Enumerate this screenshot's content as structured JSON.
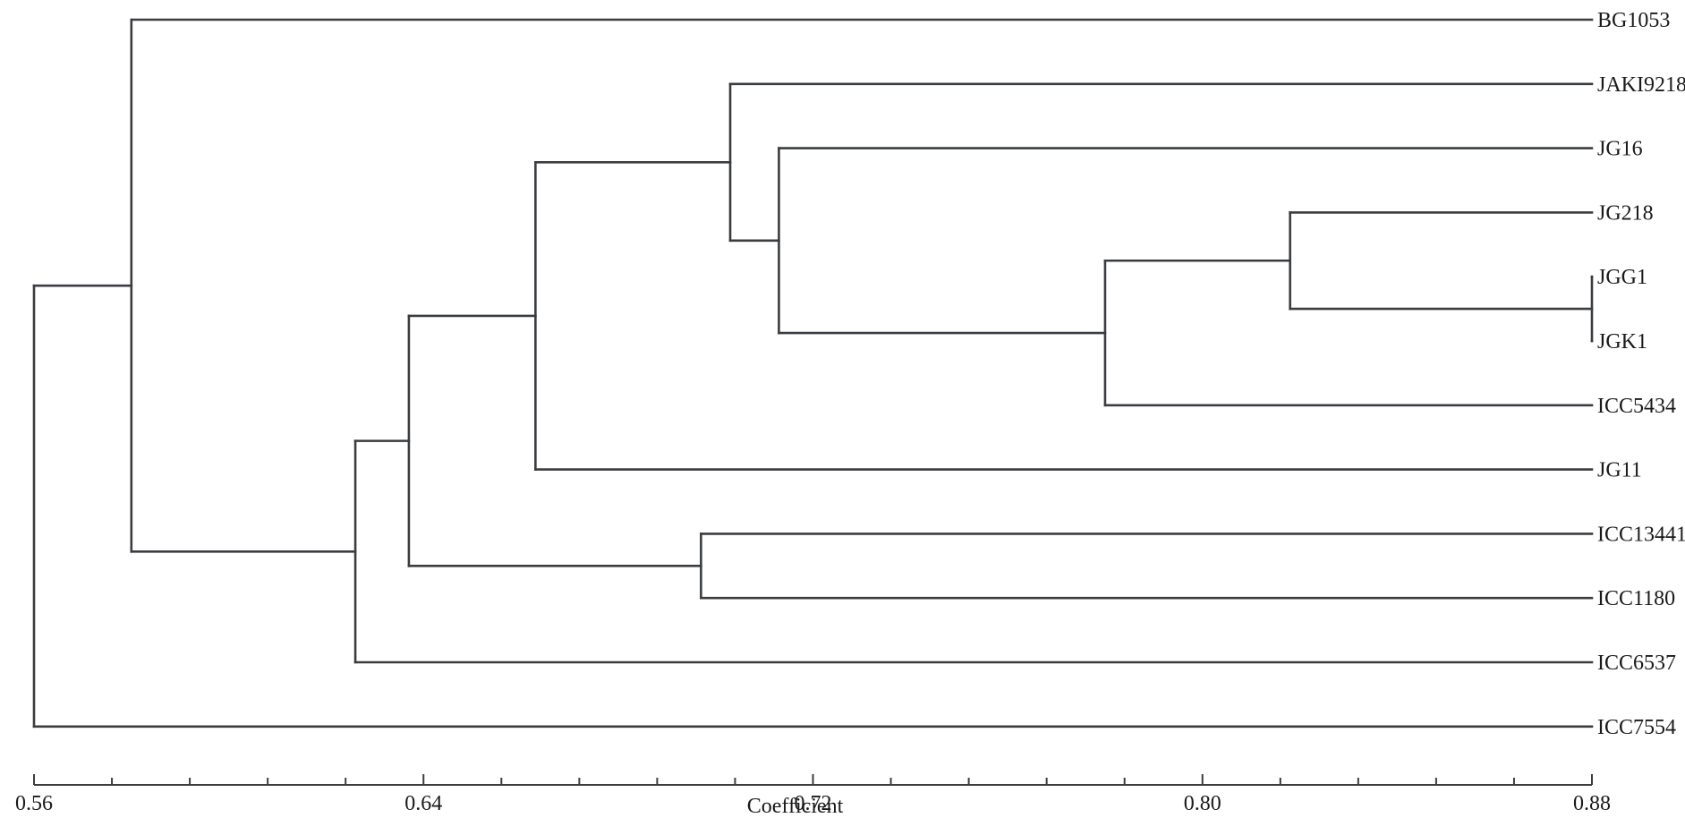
{
  "chart_data": {
    "type": "dendrogram",
    "xlabel": "Coefficient",
    "xlim": [
      0.56,
      0.88
    ],
    "major_ticks": [
      0.56,
      0.64,
      0.72,
      0.8,
      0.88
    ],
    "tick_labels": [
      "0.56",
      "0.64",
      "0.72",
      "0.80",
      "0.88"
    ],
    "minor_tick_step": 0.016,
    "leaves": [
      "BG1053",
      "JAKI9218",
      "JG16",
      "JG218",
      "JGG1",
      "JGK1",
      "ICC5434",
      "JG11",
      "ICC13441",
      "ICC1180",
      "ICC6537",
      "ICC7554"
    ],
    "merges": [
      {
        "id": "n1",
        "children": [
          "JGG1",
          "JGK1"
        ],
        "height": 0.88
      },
      {
        "id": "n2",
        "children": [
          "JG218",
          "n1"
        ],
        "height": 0.818
      },
      {
        "id": "n3",
        "children": [
          "n2",
          "ICC5434"
        ],
        "height": 0.78
      },
      {
        "id": "n4",
        "children": [
          "JG16",
          "n3"
        ],
        "height": 0.713
      },
      {
        "id": "n5",
        "children": [
          "JAKI9218",
          "n4"
        ],
        "height": 0.703
      },
      {
        "id": "n6",
        "children": [
          "n5",
          "JG11"
        ],
        "height": 0.663
      },
      {
        "id": "n7",
        "children": [
          "ICC13441",
          "ICC1180"
        ],
        "height": 0.697
      },
      {
        "id": "n8",
        "children": [
          "n6",
          "n7"
        ],
        "height": 0.637
      },
      {
        "id": "n9",
        "children": [
          "n8",
          "ICC6537"
        ],
        "height": 0.626
      },
      {
        "id": "n10",
        "children": [
          "BG1053",
          "n9"
        ],
        "height": 0.58
      },
      {
        "id": "n11",
        "children": [
          "n10",
          "ICC7554"
        ],
        "height": 0.56
      }
    ]
  }
}
